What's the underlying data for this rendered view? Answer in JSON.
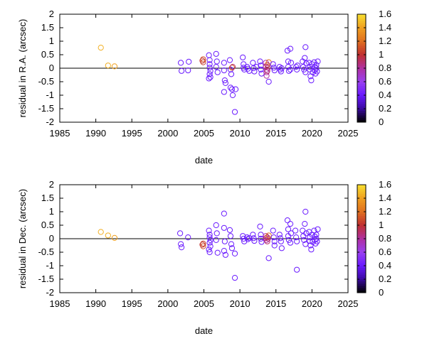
{
  "chart_data": [
    {
      "type": "scatter",
      "title": "",
      "xlabel": "date",
      "ylabel": "residual in R.A. (arcsec)",
      "xlim": [
        1985,
        2025
      ],
      "ylim": [
        -2,
        2
      ],
      "xticks": [
        "1985",
        "1990",
        "1995",
        "2000",
        "2005",
        "2010",
        "2015",
        "2020",
        "2025"
      ],
      "yticks": [
        "2",
        "1.5",
        "1",
        "0.5",
        "0",
        "-0.5",
        "-1",
        "-1.5",
        "-2"
      ],
      "grid": false,
      "zero_line": true,
      "colorbar": {
        "range": [
          0,
          1.6
        ],
        "ticks": [
          "1.6",
          "1.4",
          "1.2",
          "1",
          "0.8",
          "0.6",
          "0.4",
          "0.2",
          "0"
        ],
        "palette": [
          "#000000",
          "#3a0aa0",
          "#6a1aff",
          "#9a40f0",
          "#b030a0",
          "#c03030",
          "#e07020",
          "#f0a020",
          "#f8e030"
        ]
      },
      "points": [
        {
          "x": 1990.7,
          "y": 0.76,
          "c": 1.45
        },
        {
          "x": 1991.7,
          "y": 0.1,
          "c": 1.45
        },
        {
          "x": 1992.6,
          "y": 0.07,
          "c": 1.4
        },
        {
          "x": 2001.8,
          "y": 0.2,
          "c": 0.4
        },
        {
          "x": 2001.9,
          "y": -0.1,
          "c": 0.4
        },
        {
          "x": 2002.8,
          "y": -0.08,
          "c": 0.4
        },
        {
          "x": 2002.9,
          "y": 0.24,
          "c": 0.4
        },
        {
          "x": 2004.8,
          "y": 0.28,
          "c": 1.0
        },
        {
          "x": 2004.9,
          "y": 0.22,
          "c": 1.05
        },
        {
          "x": 2004.9,
          "y": 0.33,
          "c": 1.1
        },
        {
          "x": 2005.7,
          "y": 0.48,
          "c": 0.4
        },
        {
          "x": 2005.8,
          "y": 0.3,
          "c": 0.4
        },
        {
          "x": 2005.8,
          "y": 0.15,
          "c": 0.4
        },
        {
          "x": 2005.8,
          "y": 0.02,
          "c": 0.4
        },
        {
          "x": 2005.9,
          "y": -0.1,
          "c": 0.4
        },
        {
          "x": 2005.8,
          "y": -0.22,
          "c": 0.4
        },
        {
          "x": 2005.9,
          "y": -0.33,
          "c": 0.4
        },
        {
          "x": 2005.7,
          "y": -0.38,
          "c": 0.4
        },
        {
          "x": 2006.7,
          "y": 0.53,
          "c": 0.4
        },
        {
          "x": 2006.8,
          "y": 0.25,
          "c": 0.4
        },
        {
          "x": 2006.7,
          "y": 0.05,
          "c": 0.4
        },
        {
          "x": 2006.9,
          "y": -0.15,
          "c": 0.4
        },
        {
          "x": 2007.8,
          "y": 0.2,
          "c": 0.4
        },
        {
          "x": 2007.8,
          "y": -0.08,
          "c": 0.4
        },
        {
          "x": 2007.9,
          "y": -0.45,
          "c": 0.4
        },
        {
          "x": 2007.8,
          "y": -0.88,
          "c": 0.4
        },
        {
          "x": 2008.0,
          "y": -0.55,
          "c": 0.4
        },
        {
          "x": 2008.6,
          "y": 0.3,
          "c": 0.4
        },
        {
          "x": 2008.7,
          "y": -0.05,
          "c": 0.4
        },
        {
          "x": 2008.8,
          "y": -0.22,
          "c": 0.4
        },
        {
          "x": 2008.7,
          "y": -0.72,
          "c": 0.4
        },
        {
          "x": 2008.9,
          "y": -0.78,
          "c": 0.4
        },
        {
          "x": 2009.0,
          "y": -1.0,
          "c": 0.4
        },
        {
          "x": 2009.4,
          "y": -0.78,
          "c": 0.4
        },
        {
          "x": 2009.3,
          "y": -1.62,
          "c": 0.4
        },
        {
          "x": 2008.9,
          "y": 0.02,
          "c": 1.1
        },
        {
          "x": 2009.0,
          "y": 0.05,
          "c": 0.9
        },
        {
          "x": 2010.4,
          "y": 0.4,
          "c": 0.4
        },
        {
          "x": 2010.5,
          "y": 0.15,
          "c": 0.4
        },
        {
          "x": 2010.5,
          "y": 0.02,
          "c": 0.4
        },
        {
          "x": 2010.6,
          "y": -0.05,
          "c": 0.4
        },
        {
          "x": 2011.0,
          "y": 0.05,
          "c": 0.4
        },
        {
          "x": 2011.1,
          "y": -0.02,
          "c": 0.4
        },
        {
          "x": 2011.3,
          "y": -0.1,
          "c": 0.4
        },
        {
          "x": 2011.8,
          "y": 0.2,
          "c": 0.4
        },
        {
          "x": 2011.9,
          "y": 0.0,
          "c": 0.4
        },
        {
          "x": 2012.0,
          "y": -0.12,
          "c": 0.4
        },
        {
          "x": 2012.3,
          "y": 0.05,
          "c": 0.4
        },
        {
          "x": 2012.8,
          "y": 0.25,
          "c": 0.4
        },
        {
          "x": 2012.9,
          "y": 0.1,
          "c": 0.4
        },
        {
          "x": 2012.9,
          "y": -0.05,
          "c": 0.4
        },
        {
          "x": 2013.0,
          "y": -0.2,
          "c": 0.4
        },
        {
          "x": 2013.6,
          "y": 0.2,
          "c": 0.75
        },
        {
          "x": 2013.6,
          "y": 0.05,
          "c": 0.85
        },
        {
          "x": 2013.7,
          "y": -0.05,
          "c": 0.8
        },
        {
          "x": 2013.7,
          "y": -0.15,
          "c": 0.8
        },
        {
          "x": 2013.7,
          "y": -0.28,
          "c": 0.8
        },
        {
          "x": 2013.8,
          "y": 0.12,
          "c": 1.0
        },
        {
          "x": 2013.8,
          "y": -0.1,
          "c": 0.9
        },
        {
          "x": 2013.9,
          "y": 0.02,
          "c": 0.85
        },
        {
          "x": 2014.0,
          "y": -0.5,
          "c": 0.4
        },
        {
          "x": 2014.0,
          "y": 0.22,
          "c": 1.2
        },
        {
          "x": 2014.6,
          "y": 0.15,
          "c": 0.4
        },
        {
          "x": 2014.7,
          "y": 0.02,
          "c": 0.4
        },
        {
          "x": 2014.8,
          "y": -0.08,
          "c": 0.4
        },
        {
          "x": 2015.5,
          "y": 0.05,
          "c": 0.4
        },
        {
          "x": 2015.6,
          "y": -0.05,
          "c": 0.4
        },
        {
          "x": 2015.7,
          "y": -0.12,
          "c": 0.4
        },
        {
          "x": 2015.8,
          "y": 0.0,
          "c": 0.4
        },
        {
          "x": 2016.6,
          "y": 0.65,
          "c": 0.4
        },
        {
          "x": 2016.7,
          "y": 0.25,
          "c": 0.4
        },
        {
          "x": 2016.7,
          "y": 0.05,
          "c": 0.4
        },
        {
          "x": 2016.8,
          "y": -0.1,
          "c": 0.4
        },
        {
          "x": 2017.0,
          "y": 0.72,
          "c": 0.4
        },
        {
          "x": 2017.1,
          "y": 0.2,
          "c": 0.4
        },
        {
          "x": 2017.0,
          "y": -0.05,
          "c": 0.4
        },
        {
          "x": 2017.8,
          "y": 0.05,
          "c": 0.4
        },
        {
          "x": 2017.9,
          "y": -0.05,
          "c": 0.4
        },
        {
          "x": 2018.0,
          "y": 0.1,
          "c": 0.4
        },
        {
          "x": 2018.7,
          "y": 0.25,
          "c": 0.4
        },
        {
          "x": 2018.8,
          "y": 0.05,
          "c": 0.4
        },
        {
          "x": 2018.9,
          "y": -0.05,
          "c": 0.4
        },
        {
          "x": 2019.0,
          "y": 0.38,
          "c": 0.4
        },
        {
          "x": 2019.1,
          "y": 0.78,
          "c": 0.4
        },
        {
          "x": 2019.1,
          "y": -0.15,
          "c": 0.4
        },
        {
          "x": 2019.2,
          "y": 0.18,
          "c": 0.4
        },
        {
          "x": 2019.6,
          "y": 0.2,
          "c": 0.4
        },
        {
          "x": 2019.7,
          "y": 0.05,
          "c": 0.4
        },
        {
          "x": 2019.7,
          "y": -0.05,
          "c": 0.4
        },
        {
          "x": 2019.8,
          "y": -0.3,
          "c": 0.4
        },
        {
          "x": 2019.9,
          "y": -0.45,
          "c": 0.4
        },
        {
          "x": 2020.0,
          "y": 0.15,
          "c": 0.4
        },
        {
          "x": 2020.1,
          "y": -0.15,
          "c": 0.4
        },
        {
          "x": 2020.3,
          "y": 0.22,
          "c": 0.4
        },
        {
          "x": 2020.4,
          "y": 0.05,
          "c": 0.4
        },
        {
          "x": 2020.4,
          "y": -0.08,
          "c": 0.4
        },
        {
          "x": 2020.5,
          "y": -0.2,
          "c": 0.4
        },
        {
          "x": 2020.6,
          "y": 0.12,
          "c": 0.4
        },
        {
          "x": 2020.6,
          "y": 0.0,
          "c": 0.4
        },
        {
          "x": 2020.7,
          "y": -0.12,
          "c": 0.4
        },
        {
          "x": 2020.8,
          "y": 0.25,
          "c": 0.4
        }
      ]
    },
    {
      "type": "scatter",
      "title": "",
      "xlabel": "date",
      "ylabel": "residual in Dec. (arcsec)",
      "xlim": [
        1985,
        2025
      ],
      "ylim": [
        -2,
        2
      ],
      "xticks": [
        "1985",
        "1990",
        "1995",
        "2000",
        "2005",
        "2010",
        "2015",
        "2020",
        "2025"
      ],
      "yticks": [
        "2",
        "1.5",
        "1",
        "0.5",
        "0",
        "-0.5",
        "-1",
        "-1.5",
        "-2"
      ],
      "grid": false,
      "zero_line": true,
      "colorbar": {
        "range": [
          0,
          1.6
        ],
        "ticks": [
          "1.6",
          "1.4",
          "1.2",
          "1",
          "0.8",
          "0.6",
          "0.4",
          "0.2",
          "0"
        ],
        "palette": [
          "#000000",
          "#3a0aa0",
          "#6a1aff",
          "#9a40f0",
          "#b030a0",
          "#c03030",
          "#e07020",
          "#f0a020",
          "#f8e030"
        ]
      },
      "points": [
        {
          "x": 1990.7,
          "y": 0.25,
          "c": 1.45
        },
        {
          "x": 1991.7,
          "y": 0.12,
          "c": 1.45
        },
        {
          "x": 1992.6,
          "y": 0.03,
          "c": 1.4
        },
        {
          "x": 2001.7,
          "y": 0.2,
          "c": 0.4
        },
        {
          "x": 2001.8,
          "y": -0.2,
          "c": 0.4
        },
        {
          "x": 2001.9,
          "y": -0.32,
          "c": 0.4
        },
        {
          "x": 2002.8,
          "y": 0.05,
          "c": 0.4
        },
        {
          "x": 2004.8,
          "y": -0.22,
          "c": 1.0
        },
        {
          "x": 2004.9,
          "y": -0.28,
          "c": 1.1
        },
        {
          "x": 2004.9,
          "y": -0.18,
          "c": 1.05
        },
        {
          "x": 2005.7,
          "y": 0.3,
          "c": 0.4
        },
        {
          "x": 2005.8,
          "y": 0.15,
          "c": 0.4
        },
        {
          "x": 2005.8,
          "y": 0.05,
          "c": 0.4
        },
        {
          "x": 2005.9,
          "y": -0.05,
          "c": 0.4
        },
        {
          "x": 2005.8,
          "y": -0.15,
          "c": 0.4
        },
        {
          "x": 2005.9,
          "y": -0.28,
          "c": 0.4
        },
        {
          "x": 2005.7,
          "y": -0.4,
          "c": 0.4
        },
        {
          "x": 2005.8,
          "y": -0.5,
          "c": 0.4
        },
        {
          "x": 2006.7,
          "y": 0.5,
          "c": 0.4
        },
        {
          "x": 2006.8,
          "y": 0.2,
          "c": 0.4
        },
        {
          "x": 2006.7,
          "y": -0.05,
          "c": 0.4
        },
        {
          "x": 2006.9,
          "y": -0.52,
          "c": 0.4
        },
        {
          "x": 2007.8,
          "y": 0.93,
          "c": 0.4
        },
        {
          "x": 2007.8,
          "y": 0.4,
          "c": 0.4
        },
        {
          "x": 2007.9,
          "y": -0.1,
          "c": 0.4
        },
        {
          "x": 2007.8,
          "y": -0.45,
          "c": 0.4
        },
        {
          "x": 2008.0,
          "y": -0.6,
          "c": 0.4
        },
        {
          "x": 2008.6,
          "y": 0.32,
          "c": 0.4
        },
        {
          "x": 2008.7,
          "y": 0.1,
          "c": 0.4
        },
        {
          "x": 2008.8,
          "y": -0.2,
          "c": 0.4
        },
        {
          "x": 2008.9,
          "y": -0.35,
          "c": 0.4
        },
        {
          "x": 2009.3,
          "y": -0.55,
          "c": 0.4
        },
        {
          "x": 2009.3,
          "y": -1.45,
          "c": 0.4
        },
        {
          "x": 2010.4,
          "y": 0.1,
          "c": 0.4
        },
        {
          "x": 2010.5,
          "y": 0.0,
          "c": 0.4
        },
        {
          "x": 2010.6,
          "y": -0.1,
          "c": 0.4
        },
        {
          "x": 2011.0,
          "y": 0.05,
          "c": 0.4
        },
        {
          "x": 2011.1,
          "y": -0.02,
          "c": 0.4
        },
        {
          "x": 2011.3,
          "y": 0.02,
          "c": 0.4
        },
        {
          "x": 2011.8,
          "y": 0.15,
          "c": 0.4
        },
        {
          "x": 2011.9,
          "y": 0.02,
          "c": 0.4
        },
        {
          "x": 2012.0,
          "y": -0.08,
          "c": 0.4
        },
        {
          "x": 2012.8,
          "y": 0.45,
          "c": 0.4
        },
        {
          "x": 2012.9,
          "y": 0.15,
          "c": 0.4
        },
        {
          "x": 2012.9,
          "y": 0.0,
          "c": 0.4
        },
        {
          "x": 2013.0,
          "y": -0.12,
          "c": 0.4
        },
        {
          "x": 2013.6,
          "y": 0.1,
          "c": 0.8
        },
        {
          "x": 2013.6,
          "y": 0.02,
          "c": 0.85
        },
        {
          "x": 2013.7,
          "y": -0.05,
          "c": 0.8
        },
        {
          "x": 2013.8,
          "y": 0.05,
          "c": 1.0
        },
        {
          "x": 2013.8,
          "y": -0.1,
          "c": 0.9
        },
        {
          "x": 2013.9,
          "y": 0.0,
          "c": 0.85
        },
        {
          "x": 2014.0,
          "y": -0.72,
          "c": 0.4
        },
        {
          "x": 2014.0,
          "y": 0.12,
          "c": 1.2
        },
        {
          "x": 2014.6,
          "y": 0.3,
          "c": 0.4
        },
        {
          "x": 2014.7,
          "y": 0.05,
          "c": 0.4
        },
        {
          "x": 2014.8,
          "y": -0.1,
          "c": 0.4
        },
        {
          "x": 2014.8,
          "y": -0.25,
          "c": 0.4
        },
        {
          "x": 2015.5,
          "y": 0.15,
          "c": 0.4
        },
        {
          "x": 2015.6,
          "y": 0.02,
          "c": 0.4
        },
        {
          "x": 2015.7,
          "y": -0.1,
          "c": 0.4
        },
        {
          "x": 2015.8,
          "y": -0.35,
          "c": 0.4
        },
        {
          "x": 2016.6,
          "y": 0.68,
          "c": 0.4
        },
        {
          "x": 2016.7,
          "y": 0.35,
          "c": 0.4
        },
        {
          "x": 2016.7,
          "y": 0.1,
          "c": 0.4
        },
        {
          "x": 2016.8,
          "y": -0.05,
          "c": 0.4
        },
        {
          "x": 2017.0,
          "y": 0.55,
          "c": 0.4
        },
        {
          "x": 2017.1,
          "y": 0.2,
          "c": 0.4
        },
        {
          "x": 2017.0,
          "y": -0.15,
          "c": 0.4
        },
        {
          "x": 2017.7,
          "y": 0.3,
          "c": 0.4
        },
        {
          "x": 2017.8,
          "y": 0.05,
          "c": 0.4
        },
        {
          "x": 2017.9,
          "y": -0.1,
          "c": 0.4
        },
        {
          "x": 2017.9,
          "y": -1.15,
          "c": 0.4
        },
        {
          "x": 2018.7,
          "y": 0.3,
          "c": 0.4
        },
        {
          "x": 2018.8,
          "y": 0.1,
          "c": 0.4
        },
        {
          "x": 2018.9,
          "y": -0.05,
          "c": 0.4
        },
        {
          "x": 2019.0,
          "y": 0.55,
          "c": 0.4
        },
        {
          "x": 2019.1,
          "y": 1.0,
          "c": 0.4
        },
        {
          "x": 2019.1,
          "y": -0.2,
          "c": 0.4
        },
        {
          "x": 2019.2,
          "y": 0.2,
          "c": 0.4
        },
        {
          "x": 2019.6,
          "y": 0.25,
          "c": 0.4
        },
        {
          "x": 2019.7,
          "y": 0.05,
          "c": 0.4
        },
        {
          "x": 2019.7,
          "y": -0.08,
          "c": 0.4
        },
        {
          "x": 2019.8,
          "y": -0.25,
          "c": 0.4
        },
        {
          "x": 2019.9,
          "y": -0.4,
          "c": 0.4
        },
        {
          "x": 2020.0,
          "y": 0.15,
          "c": 0.4
        },
        {
          "x": 2020.1,
          "y": -0.12,
          "c": 0.4
        },
        {
          "x": 2020.3,
          "y": 0.3,
          "c": 0.4
        },
        {
          "x": 2020.4,
          "y": 0.08,
          "c": 0.4
        },
        {
          "x": 2020.4,
          "y": -0.05,
          "c": 0.4
        },
        {
          "x": 2020.5,
          "y": -0.18,
          "c": 0.4
        },
        {
          "x": 2020.6,
          "y": 0.15,
          "c": 0.4
        },
        {
          "x": 2020.6,
          "y": 0.0,
          "c": 0.4
        },
        {
          "x": 2020.7,
          "y": -0.1,
          "c": 0.4
        },
        {
          "x": 2020.8,
          "y": 0.35,
          "c": 0.4
        }
      ]
    }
  ]
}
